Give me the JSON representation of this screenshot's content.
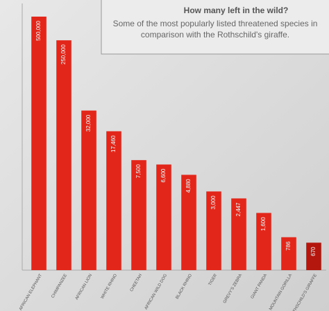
{
  "chart_data": {
    "type": "bar",
    "title": "How many left in the wild?",
    "subtitle": "Some of the most popularly listed threatened species in comparison with the Rothschild's giraffe.",
    "categories": [
      "AFRICAN ELEPHANT",
      "CHIMPANZEE",
      "AFRICAN LION",
      "WHITE RHINO",
      "CHEETAH",
      "AFRICAN WILD DOG",
      "BLACK RHINO",
      "TIGER",
      "GREVY'S ZEBRA",
      "GIANT PANDA",
      "MOUNTAIN GORILLA",
      "ROTHSCHILD'S GIRAFFE"
    ],
    "values": [
      500000,
      250000,
      32000,
      17460,
      7500,
      6600,
      4880,
      3000,
      2447,
      1600,
      786,
      670
    ],
    "value_labels": [
      "500,000",
      "250,000",
      "32,000",
      "17,460",
      "7,500",
      "6,600",
      "4,880",
      "3,000",
      "2,447",
      "1,600",
      "786",
      "670"
    ],
    "colors": [
      "#e2261a",
      "#e2261a",
      "#e2261a",
      "#e2261a",
      "#e2261a",
      "#e2261a",
      "#e2261a",
      "#e2261a",
      "#e2261a",
      "#e2261a",
      "#e2261a",
      "#b3170e"
    ],
    "log_scale": true,
    "ylim": [
      300,
      600000
    ]
  }
}
